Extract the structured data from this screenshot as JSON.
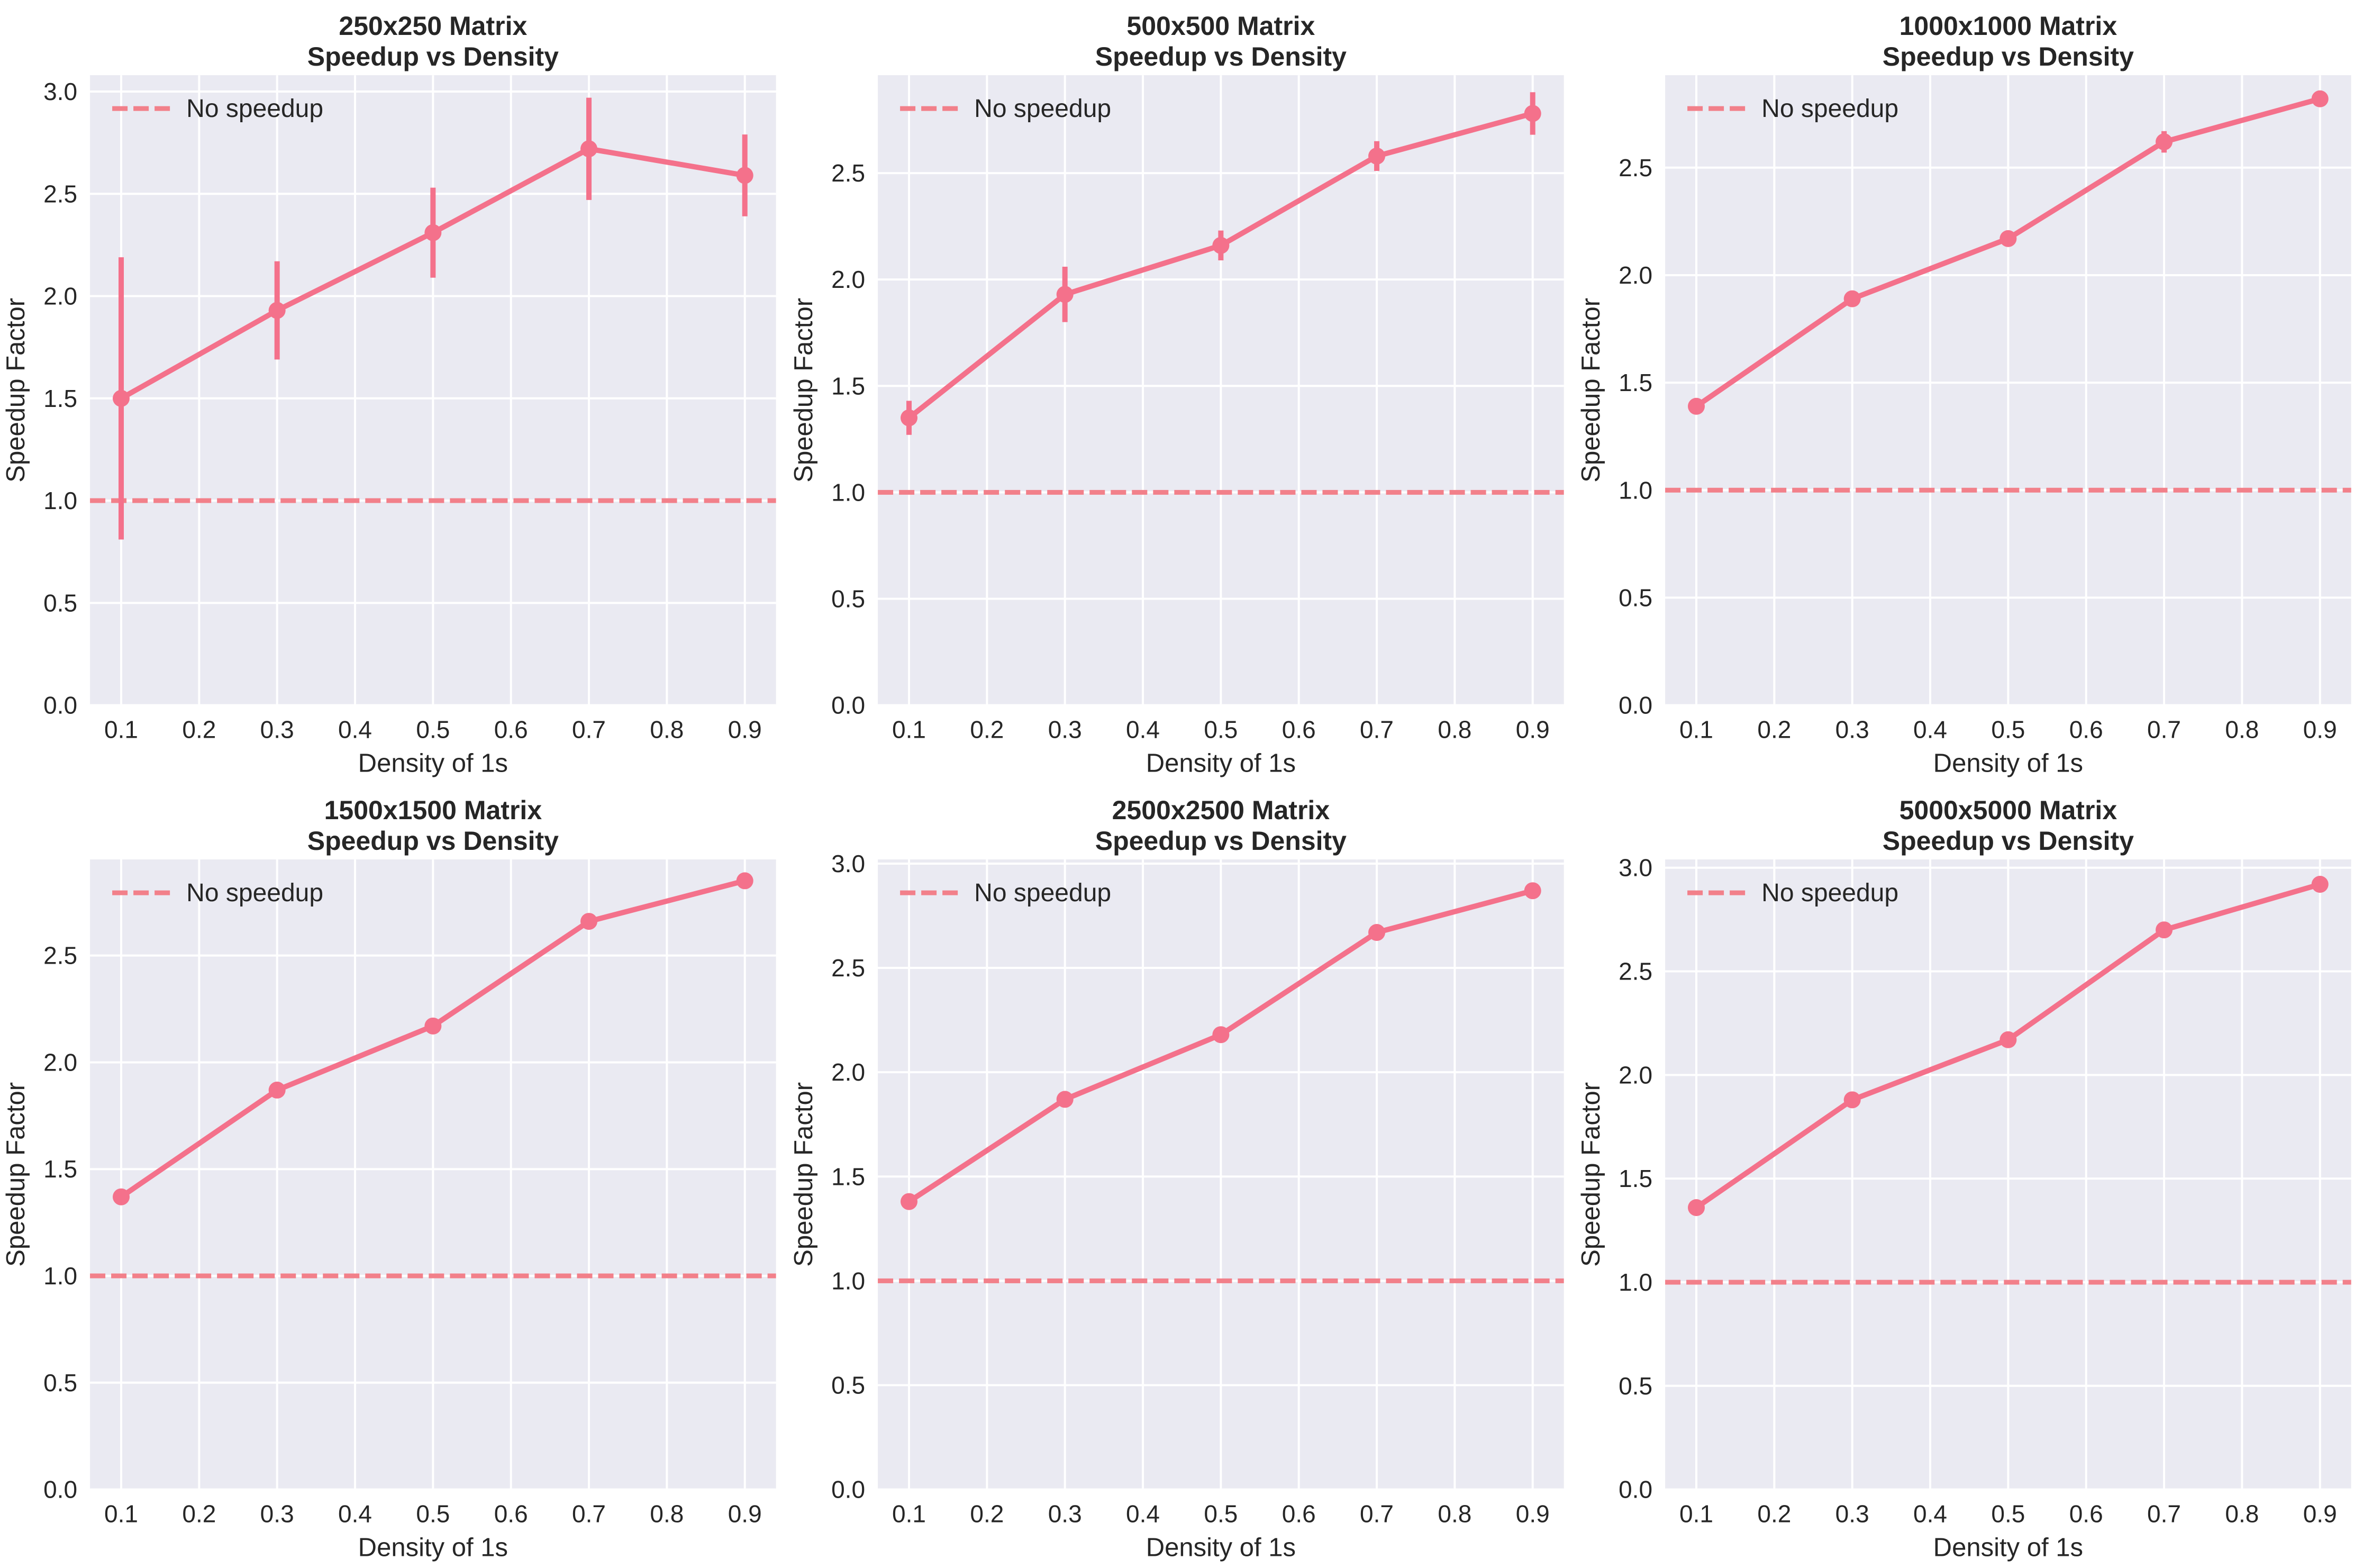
{
  "figure": {
    "background": "#ffffff",
    "axes_background": "#eaeaf2",
    "grid_color": "#ffffff",
    "text_color": "#262626",
    "series_color": "#f4718b",
    "reference_color": "#f2808a"
  },
  "chart_data": [
    {
      "type": "line",
      "title": "250x250 Matrix",
      "subtitle": "Speedup vs Density",
      "xlabel": "Density of 1s",
      "ylabel": "Speedup Factor",
      "legend": [
        {
          "label": "No speedup",
          "style": "dashed"
        }
      ],
      "legend_position": "upper left",
      "grid": true,
      "x": [
        0.1,
        0.3,
        0.5,
        0.7,
        0.9
      ],
      "y": [
        1.5,
        1.93,
        2.31,
        2.72,
        2.59
      ],
      "yerr": [
        0.69,
        0.24,
        0.22,
        0.25,
        0.2
      ],
      "reference_line_y": 1.0,
      "xlim": [
        0.06,
        0.94
      ],
      "ylim": [
        0,
        3.08
      ],
      "xticks": [
        0.1,
        0.2,
        0.3,
        0.4,
        0.5,
        0.6,
        0.7,
        0.8,
        0.9
      ],
      "yticks": [
        0.0,
        0.5,
        1.0,
        1.5,
        2.0,
        2.5,
        3.0
      ]
    },
    {
      "type": "line",
      "title": "500x500 Matrix",
      "subtitle": "Speedup vs Density",
      "xlabel": "Density of 1s",
      "ylabel": "Speedup Factor",
      "legend": [
        {
          "label": "No speedup",
          "style": "dashed"
        }
      ],
      "legend_position": "upper left",
      "grid": true,
      "x": [
        0.1,
        0.3,
        0.5,
        0.7,
        0.9
      ],
      "y": [
        1.35,
        1.93,
        2.16,
        2.58,
        2.78
      ],
      "yerr": [
        0.08,
        0.13,
        0.07,
        0.07,
        0.1
      ],
      "reference_line_y": 1.0,
      "xlim": [
        0.06,
        0.94
      ],
      "ylim": [
        0,
        2.96
      ],
      "xticks": [
        0.1,
        0.2,
        0.3,
        0.4,
        0.5,
        0.6,
        0.7,
        0.8,
        0.9
      ],
      "yticks": [
        0.0,
        0.5,
        1.0,
        1.5,
        2.0,
        2.5
      ]
    },
    {
      "type": "line",
      "title": "1000x1000 Matrix",
      "subtitle": "Speedup vs Density",
      "xlabel": "Density of 1s",
      "ylabel": "Speedup Factor",
      "legend": [
        {
          "label": "No speedup",
          "style": "dashed"
        }
      ],
      "legend_position": "upper left",
      "grid": true,
      "x": [
        0.1,
        0.3,
        0.5,
        0.7,
        0.9
      ],
      "y": [
        1.39,
        1.89,
        2.17,
        2.62,
        2.82
      ],
      "yerr": [
        0.02,
        0.02,
        0.02,
        0.05,
        0.02
      ],
      "reference_line_y": 1.0,
      "xlim": [
        0.06,
        0.94
      ],
      "ylim": [
        0,
        2.93
      ],
      "xticks": [
        0.1,
        0.2,
        0.3,
        0.4,
        0.5,
        0.6,
        0.7,
        0.8,
        0.9
      ],
      "yticks": [
        0.0,
        0.5,
        1.0,
        1.5,
        2.0,
        2.5
      ]
    },
    {
      "type": "line",
      "title": "1500x1500 Matrix",
      "subtitle": "Speedup vs Density",
      "xlabel": "Density of 1s",
      "ylabel": "Speedup Factor",
      "legend": [
        {
          "label": "No speedup",
          "style": "dashed"
        }
      ],
      "legend_position": "upper left",
      "grid": true,
      "x": [
        0.1,
        0.3,
        0.5,
        0.7,
        0.9
      ],
      "y": [
        1.37,
        1.87,
        2.17,
        2.66,
        2.85
      ],
      "yerr": [
        0.02,
        0.01,
        0.02,
        0.02,
        0.02
      ],
      "reference_line_y": 1.0,
      "xlim": [
        0.06,
        0.94
      ],
      "ylim": [
        0,
        2.95
      ],
      "xticks": [
        0.1,
        0.2,
        0.3,
        0.4,
        0.5,
        0.6,
        0.7,
        0.8,
        0.9
      ],
      "yticks": [
        0.0,
        0.5,
        1.0,
        1.5,
        2.0,
        2.5
      ]
    },
    {
      "type": "line",
      "title": "2500x2500 Matrix",
      "subtitle": "Speedup vs Density",
      "xlabel": "Density of 1s",
      "ylabel": "Speedup Factor",
      "legend": [
        {
          "label": "No speedup",
          "style": "dashed"
        }
      ],
      "legend_position": "upper left",
      "grid": true,
      "x": [
        0.1,
        0.3,
        0.5,
        0.7,
        0.9
      ],
      "y": [
        1.38,
        1.87,
        2.18,
        2.67,
        2.87
      ],
      "yerr": [
        0.02,
        0.01,
        0.01,
        0.02,
        0.03
      ],
      "reference_line_y": 1.0,
      "xlim": [
        0.06,
        0.94
      ],
      "ylim": [
        0,
        3.02
      ],
      "xticks": [
        0.1,
        0.2,
        0.3,
        0.4,
        0.5,
        0.6,
        0.7,
        0.8,
        0.9
      ],
      "yticks": [
        0.0,
        0.5,
        1.0,
        1.5,
        2.0,
        2.5,
        3.0
      ]
    },
    {
      "type": "line",
      "title": "5000x5000 Matrix",
      "subtitle": "Speedup vs Density",
      "xlabel": "Density of 1s",
      "ylabel": "Speedup Factor",
      "legend": [
        {
          "label": "No speedup",
          "style": "dashed"
        }
      ],
      "legend_position": "upper left",
      "grid": true,
      "x": [
        0.1,
        0.3,
        0.5,
        0.7,
        0.9
      ],
      "y": [
        1.36,
        1.88,
        2.17,
        2.7,
        2.92
      ],
      "yerr": [
        0.01,
        0.01,
        0.01,
        0.02,
        0.02
      ],
      "reference_line_y": 1.0,
      "xlim": [
        0.06,
        0.94
      ],
      "ylim": [
        0,
        3.04
      ],
      "xticks": [
        0.1,
        0.2,
        0.3,
        0.4,
        0.5,
        0.6,
        0.7,
        0.8,
        0.9
      ],
      "yticks": [
        0.0,
        0.5,
        1.0,
        1.5,
        2.0,
        2.5,
        3.0
      ]
    }
  ]
}
